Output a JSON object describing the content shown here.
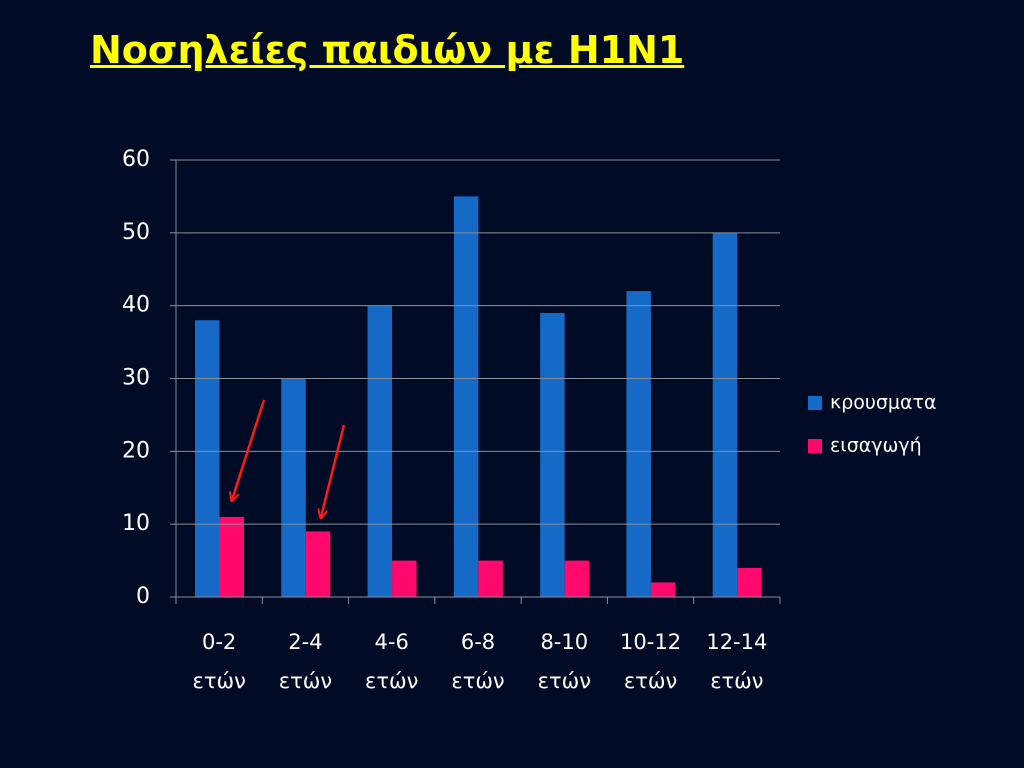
{
  "chart_data": {
    "type": "bar",
    "title": "Νοσηλείες παιδιών με H1N1",
    "categories": [
      "0-2 ετών",
      "2-4 ετών",
      "4-6 ετών",
      "6-8 ετών",
      "8-10 ετών",
      "10-12 ετών",
      "12-14 ετών"
    ],
    "series": [
      {
        "name": "κρουσματα",
        "color": "#1569c7",
        "values": [
          38,
          30,
          40,
          55,
          39,
          42,
          50
        ]
      },
      {
        "name": "εισαγωγή",
        "color": "#ff0a6c",
        "values": [
          11,
          9,
          5,
          5,
          5,
          2,
          4
        ]
      }
    ],
    "ylim": [
      0,
      60
    ],
    "yticks": [
      0,
      10,
      20,
      30,
      40,
      50,
      60
    ],
    "grid": true,
    "legend": "right"
  }
}
